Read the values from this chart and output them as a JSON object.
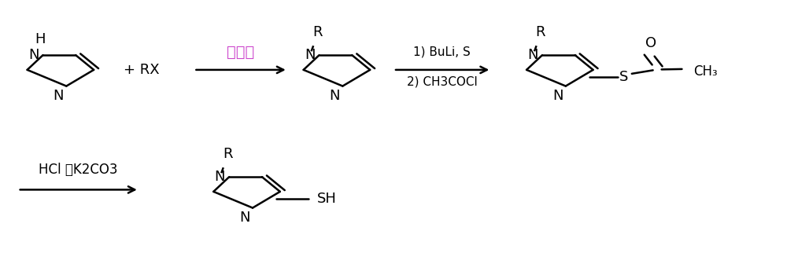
{
  "background_color": "#ffffff",
  "line_color": "#000000",
  "reagent_color_1": "#cc44cc",
  "label1": "无机碱",
  "label2_line1": "1) BuLi, S",
  "label2_line2": "2) CH3COCl",
  "label3": "HCl 或K2CO3",
  "fig_width": 10.0,
  "fig_height": 3.5,
  "dpi": 100,
  "font_size_atom": 13
}
